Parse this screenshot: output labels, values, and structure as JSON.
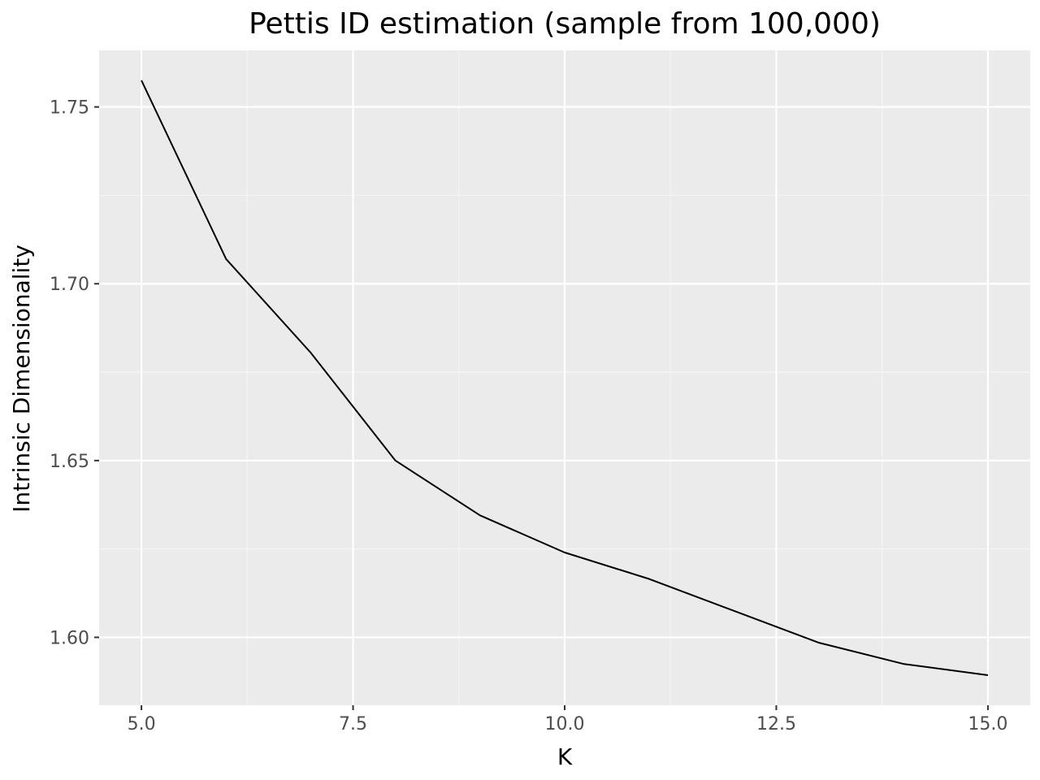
{
  "chart_data": {
    "type": "line",
    "title": "Pettis ID estimation (sample from 100,000)",
    "xlabel": "K",
    "ylabel": "Intrinsic Dimensionality",
    "x": [
      5,
      6,
      7,
      8,
      9,
      10,
      11,
      12,
      13,
      14,
      15
    ],
    "series": [
      {
        "name": "",
        "values": [
          1.7575,
          1.707,
          1.6805,
          1.65,
          1.6345,
          1.624,
          1.6165,
          1.6075,
          1.5985,
          1.5925,
          1.5893
        ]
      }
    ],
    "xlim": [
      4.5,
      15.5
    ],
    "ylim": [
      1.5808,
      1.766
    ],
    "x_ticks": [
      5.0,
      7.5,
      10.0,
      12.5,
      15.0
    ],
    "x_tick_labels": [
      "5.0",
      "7.5",
      "10.0",
      "12.5",
      "15.0"
    ],
    "x_minor_ticks": [
      6.25,
      8.75,
      11.25,
      13.75
    ],
    "y_ticks": [
      1.6,
      1.65,
      1.7,
      1.75
    ],
    "y_tick_labels": [
      "1.60",
      "1.65",
      "1.70",
      "1.75"
    ],
    "y_minor_ticks": [
      1.625,
      1.675,
      1.725
    ],
    "grid": true,
    "legend": "none",
    "colors": {
      "panel_background": "#EBEBEB",
      "grid_major": "#FFFFFF",
      "grid_minor": "#F5F5F5",
      "line": "#000000",
      "tick_mark": "#333333",
      "tick_label": "#4D4D4D"
    }
  }
}
